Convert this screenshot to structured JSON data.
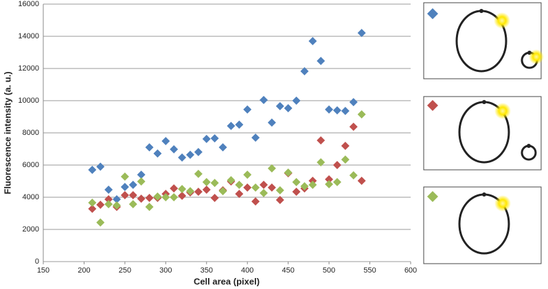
{
  "chart_data": {
    "type": "scatter",
    "x_label": "Cell area (pixel)",
    "y_label": "Fluorescence intensity (a. u.)",
    "x": [
      210,
      220,
      230,
      240,
      250,
      260,
      270,
      280,
      290,
      300,
      310,
      320,
      330,
      340,
      350,
      360,
      370,
      380,
      390,
      400,
      410,
      420,
      430,
      440,
      450,
      460,
      470,
      480,
      490,
      500,
      510,
      520,
      530,
      540
    ],
    "series": [
      {
        "color": "#4f81bd",
        "values": [
          5700,
          5900,
          4470,
          3870,
          4640,
          4770,
          5400,
          7100,
          6720,
          7490,
          6980,
          6470,
          6640,
          6810,
          7620,
          7660,
          7100,
          8430,
          8510,
          9450,
          7700,
          10040,
          8640,
          9660,
          9530,
          10000,
          11830,
          13700,
          12470,
          9450,
          9400,
          9360,
          9910,
          14210
        ]
      },
      {
        "color": "#c0504d",
        "values": [
          3280,
          3530,
          3870,
          3400,
          4130,
          4130,
          3910,
          3960,
          3960,
          4210,
          4550,
          4090,
          4300,
          4340,
          4470,
          3960,
          4430,
          4980,
          4210,
          4600,
          3740,
          4770,
          4600,
          3830,
          5490,
          4340,
          4550,
          5020,
          7530,
          5110,
          6000,
          7190,
          8380,
          5020
        ]
      },
      {
        "color": "#9bbb59",
        "values": [
          3660,
          2430,
          3570,
          3490,
          5280,
          3570,
          4980,
          3400,
          4040,
          4000,
          4000,
          4510,
          4380,
          5450,
          4940,
          4890,
          4380,
          5060,
          4770,
          5400,
          4600,
          4260,
          5790,
          4430,
          5530,
          4940,
          4680,
          4770,
          6170,
          4810,
          4940,
          6340,
          5360,
          9150
        ]
      }
    ],
    "xlim": [
      150,
      600
    ],
    "xticks": [
      150,
      200,
      250,
      300,
      350,
      400,
      450,
      500,
      550,
      600
    ],
    "ylim": [
      0,
      16000
    ],
    "yticks": [
      0,
      2000,
      4000,
      6000,
      8000,
      10000,
      12000,
      14000,
      16000
    ],
    "grid": true
  }
}
